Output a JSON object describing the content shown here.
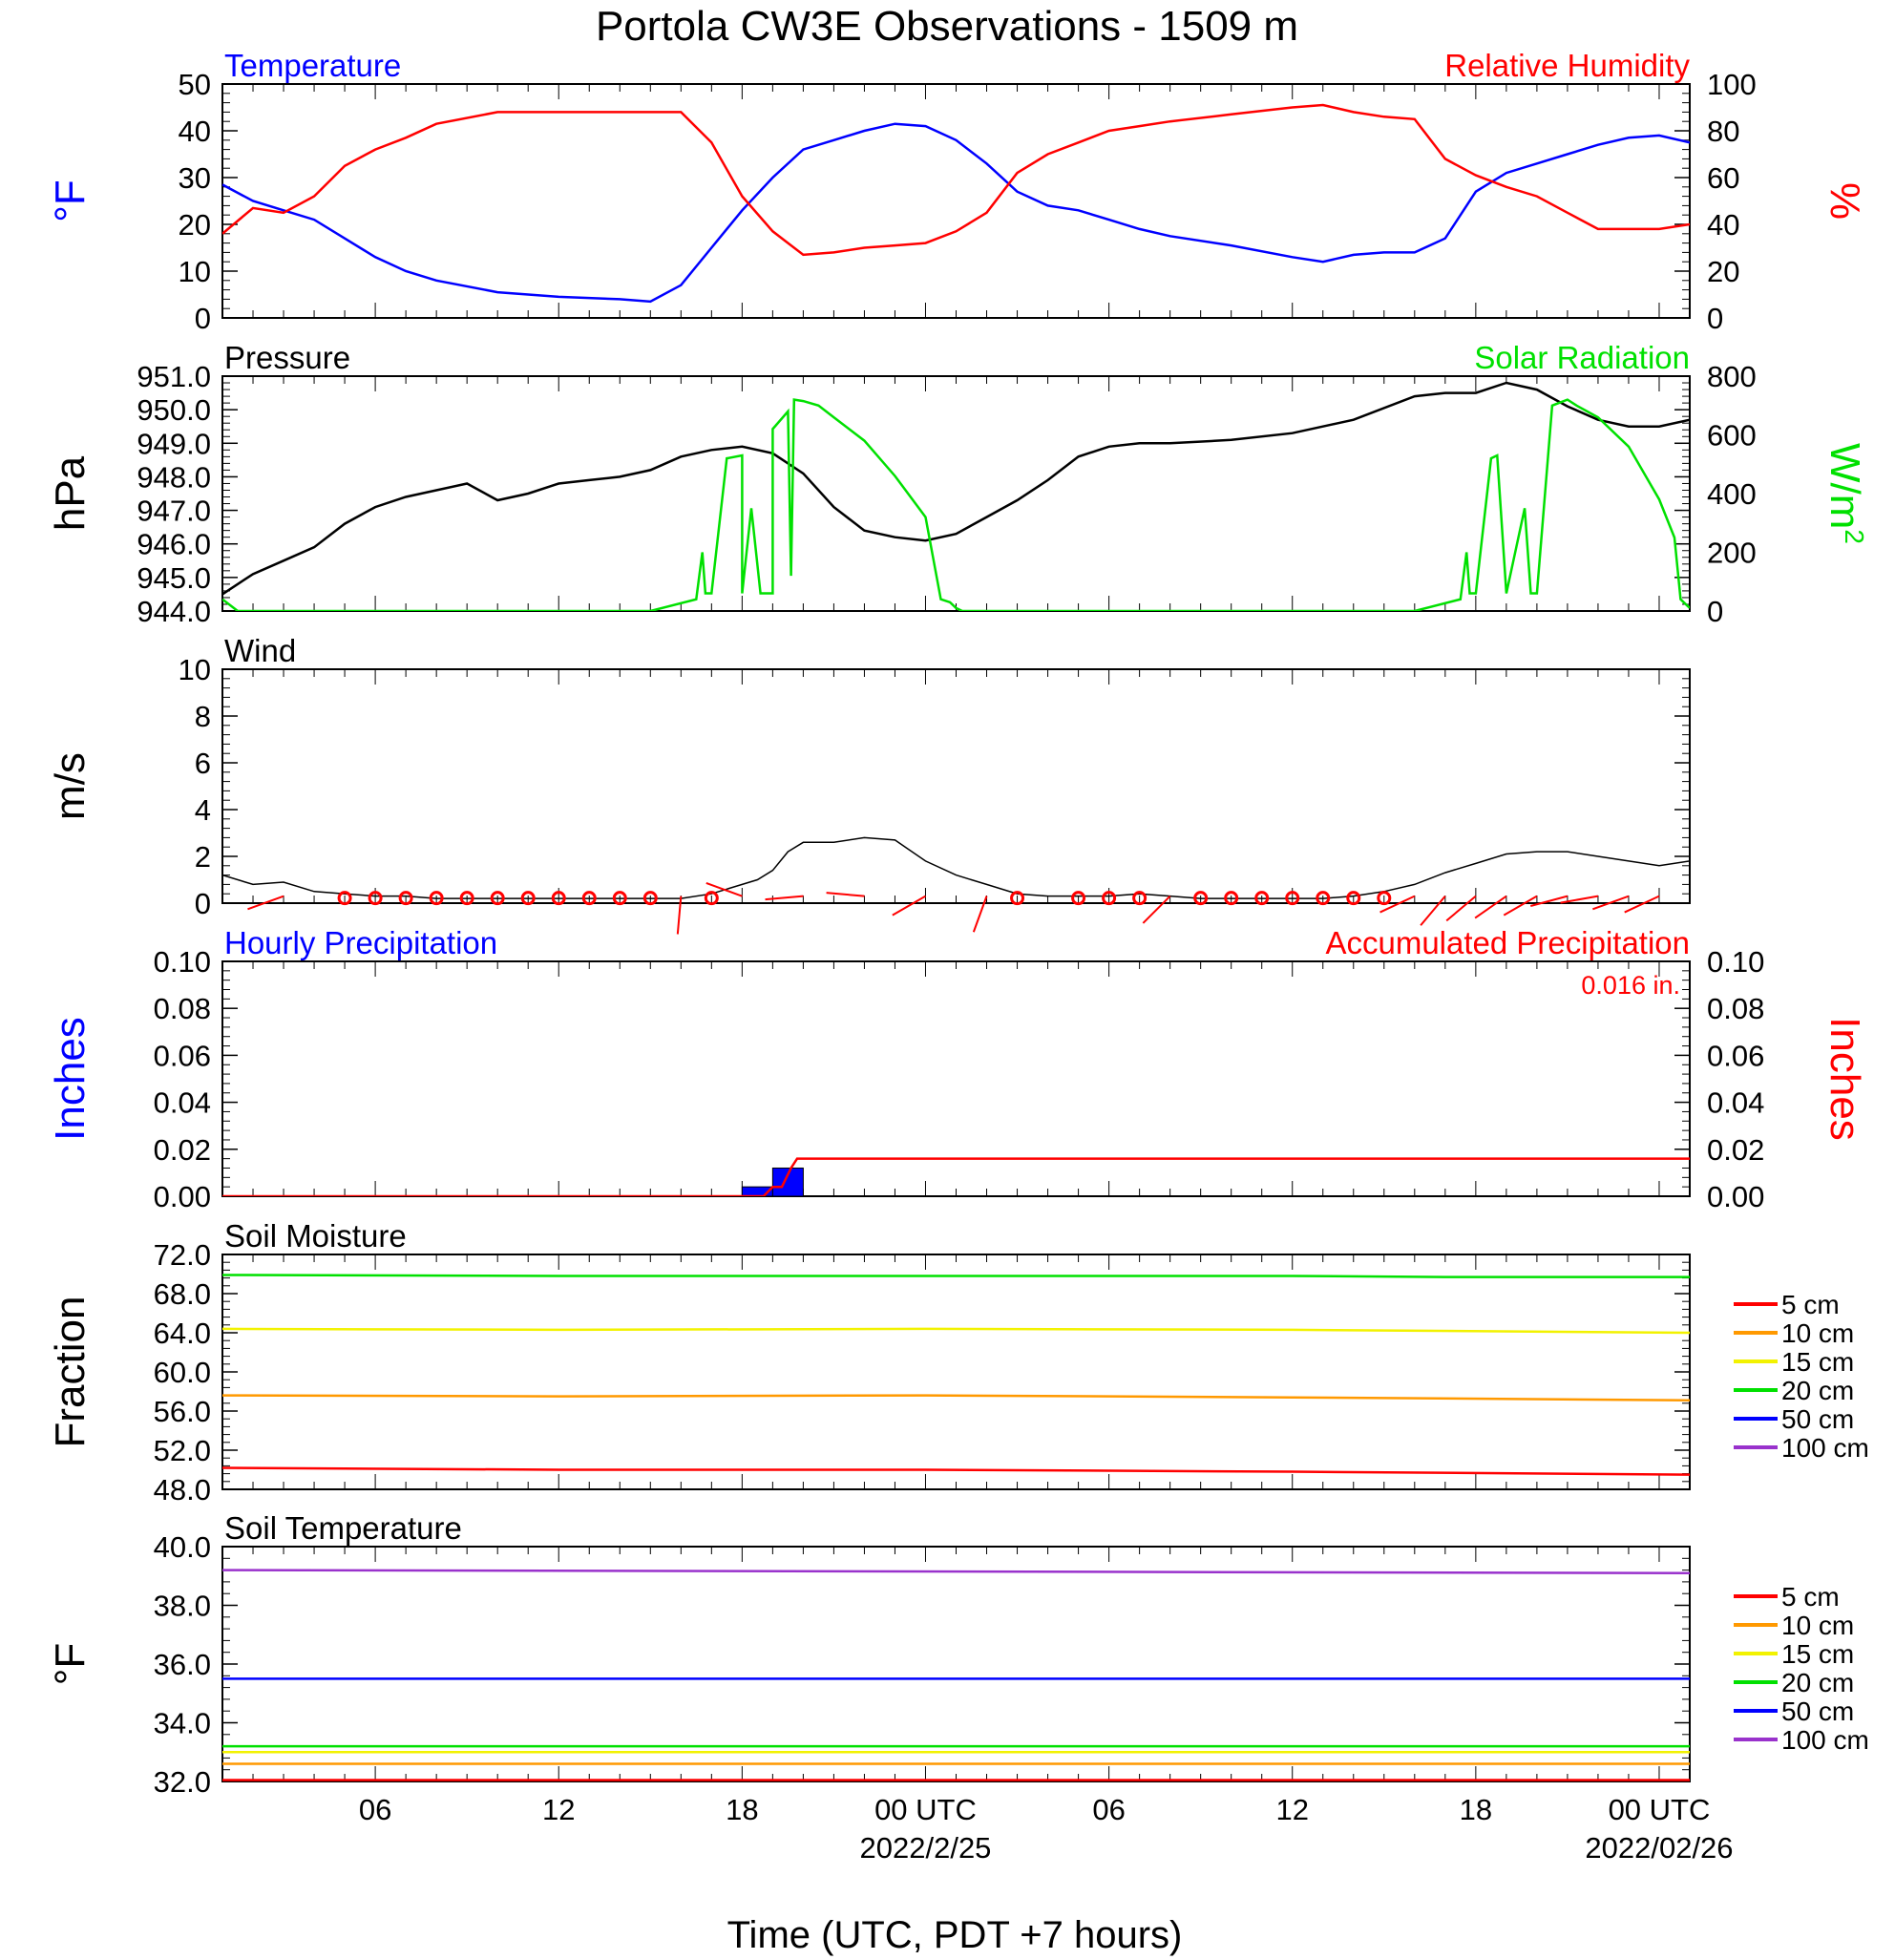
{
  "title": "Portola CW3E Observations - 1509 m",
  "x_axis": {
    "label": "Time (UTC, PDT +7 hours)",
    "ticks": [
      {
        "h": 6,
        "label": "06",
        "date": ""
      },
      {
        "h": 12,
        "label": "12",
        "date": ""
      },
      {
        "h": 18,
        "label": "18",
        "date": ""
      },
      {
        "h": 24,
        "label": "00 UTC",
        "date": "2022/2/25"
      },
      {
        "h": 30,
        "label": "06",
        "date": ""
      },
      {
        "h": 36,
        "label": "12",
        "date": ""
      },
      {
        "h": 42,
        "label": "18",
        "date": ""
      },
      {
        "h": 48,
        "label": "00 UTC",
        "date": "2022/02/26"
      }
    ],
    "range_hours": [
      1,
      49
    ]
  },
  "colors": {
    "temperature": "#0000ff",
    "humidity": "#ff0000",
    "pressure": "#000000",
    "solar": "#00e000",
    "wind": "#000000",
    "barb": "#ff0000",
    "hourly_precip": "#0000ff",
    "accum_precip": "#ff0000"
  },
  "chart_data": [
    {
      "type": "line",
      "name": "temp_rh",
      "left_title": "Temperature",
      "right_title": "Relative Humidity",
      "left_unit": "°F",
      "right_unit": "%",
      "left_ylim": [
        0,
        50
      ],
      "left_ticks": [
        "0",
        "10",
        "20",
        "30",
        "40",
        "50"
      ],
      "right_ylim": [
        0,
        100
      ],
      "right_ticks": [
        "0",
        "20",
        "40",
        "60",
        "80",
        "100"
      ],
      "series": [
        {
          "name": "Temperature",
          "axis": "left",
          "x": [
            1,
            2,
            3,
            4,
            5,
            6,
            7,
            8,
            10,
            12,
            14,
            15,
            16,
            17,
            18,
            19,
            20,
            21,
            22,
            23,
            24,
            25,
            26,
            27,
            28,
            29,
            30,
            31,
            32,
            34,
            36,
            37,
            38,
            39,
            40,
            41,
            42,
            43,
            44,
            45,
            46,
            47,
            48,
            49
          ],
          "y": [
            28.5,
            25,
            23,
            21,
            17,
            13,
            10,
            8,
            5.5,
            4.5,
            4,
            3.5,
            7,
            15,
            23,
            30,
            36,
            38,
            40,
            41.5,
            41,
            38,
            33,
            27,
            24,
            23,
            21,
            19,
            17.5,
            15.5,
            13,
            12,
            13.5,
            14,
            14,
            17,
            27,
            31,
            33,
            35,
            37,
            38.5,
            39,
            37.5
          ]
        },
        {
          "name": "Relative Humidity",
          "axis": "right",
          "x": [
            1,
            2,
            3,
            4,
            5,
            6,
            7,
            8,
            10,
            12,
            14,
            15,
            16,
            17,
            18,
            19,
            20,
            21,
            22,
            23,
            24,
            25,
            26,
            27,
            28,
            29,
            30,
            31,
            32,
            34,
            36,
            37,
            38,
            39,
            40,
            41,
            42,
            43,
            44,
            45,
            46,
            47,
            48,
            49
          ],
          "y": [
            36,
            47,
            45,
            52,
            65,
            72,
            77,
            83,
            88,
            88,
            88,
            88,
            88,
            75,
            52,
            37,
            27,
            28,
            30,
            31,
            32,
            37,
            45,
            62,
            70,
            75,
            80,
            82,
            84,
            87,
            90,
            91,
            88,
            86,
            85,
            68,
            61,
            56,
            52,
            45,
            38,
            38,
            38,
            40
          ]
        }
      ]
    },
    {
      "type": "line",
      "name": "pressure_solar",
      "left_title": "Pressure",
      "right_title": "Solar Radiation",
      "left_unit": "hPa",
      "right_unit": "W/m",
      "right_unit_sup": "2",
      "left_ylim": [
        944,
        951
      ],
      "left_ticks": [
        "944.0",
        "945.0",
        "946.0",
        "947.0",
        "948.0",
        "949.0",
        "950.0",
        "951.0"
      ],
      "right_ylim": [
        0,
        800
      ],
      "right_ticks": [
        "0",
        "200",
        "400",
        "600",
        "800"
      ],
      "series": [
        {
          "name": "Pressure",
          "axis": "left",
          "x": [
            1,
            2,
            3,
            4,
            5,
            6,
            7,
            8,
            9,
            10,
            11,
            12,
            13,
            14,
            15,
            16,
            17,
            18,
            19,
            20,
            21,
            22,
            23,
            24,
            25,
            26,
            27,
            28,
            29,
            30,
            31,
            32,
            34,
            36,
            38,
            40,
            41,
            42,
            43,
            44,
            45,
            46,
            47,
            48,
            49
          ],
          "y": [
            944.5,
            945.1,
            945.5,
            945.9,
            946.6,
            947.1,
            947.4,
            947.6,
            947.8,
            947.3,
            947.5,
            947.8,
            947.9,
            948.0,
            948.2,
            948.6,
            948.8,
            948.9,
            948.7,
            948.1,
            947.1,
            946.4,
            946.2,
            946.1,
            946.3,
            946.8,
            947.3,
            947.9,
            948.6,
            948.9,
            949.0,
            949.0,
            949.1,
            949.3,
            949.7,
            950.4,
            950.5,
            950.5,
            950.8,
            950.6,
            950.1,
            949.7,
            949.5,
            949.5,
            949.7
          ]
        },
        {
          "name": "Solar Radiation",
          "axis": "right",
          "x": [
            1,
            1.5,
            2,
            15,
            16.5,
            16.7,
            16.8,
            17,
            17.5,
            18,
            18,
            18.3,
            18.6,
            19,
            19,
            19.5,
            19.6,
            19.7,
            20,
            20.5,
            21,
            22,
            23,
            24,
            24.5,
            24.8,
            25,
            25.2,
            25.6,
            40,
            41.5,
            41.7,
            41.8,
            42,
            42.5,
            42.7,
            43,
            43.6,
            43.8,
            44,
            44.5,
            45,
            45.3,
            46,
            47,
            48,
            48.5,
            48.7,
            48.8,
            49
          ],
          "y": [
            40,
            0,
            0,
            0,
            40,
            200,
            60,
            60,
            520,
            530,
            60,
            350,
            60,
            60,
            620,
            680,
            120,
            720,
            715,
            700,
            660,
            580,
            460,
            320,
            40,
            30,
            10,
            0,
            0,
            0,
            40,
            200,
            60,
            60,
            520,
            530,
            60,
            350,
            60,
            60,
            700,
            720,
            700,
            660,
            560,
            380,
            250,
            40,
            30,
            10
          ]
        }
      ]
    },
    {
      "type": "line",
      "name": "wind",
      "left_title": "Wind",
      "left_unit": "m/s",
      "left_ylim": [
        0,
        10
      ],
      "left_ticks": [
        "0",
        "2",
        "4",
        "6",
        "8",
        "10"
      ],
      "series": [
        {
          "name": "Wind",
          "axis": "left",
          "x": [
            1,
            2,
            3,
            4,
            5,
            6,
            7,
            8,
            9,
            10,
            11,
            12,
            13,
            14,
            15,
            16,
            17,
            17.5,
            18,
            18.5,
            19,
            19.5,
            20,
            21,
            22,
            23,
            24,
            25,
            26,
            27,
            28,
            29,
            30,
            31,
            32,
            33,
            34,
            35,
            36,
            37,
            38,
            39,
            40,
            41,
            42,
            43,
            44,
            45,
            46,
            47,
            48,
            49
          ],
          "y": [
            1.2,
            0.8,
            0.9,
            0.5,
            0.4,
            0.3,
            0.3,
            0.2,
            0.2,
            0.2,
            0.2,
            0.2,
            0.2,
            0.2,
            0.2,
            0.2,
            0.4,
            0.6,
            0.8,
            1.0,
            1.4,
            2.2,
            2.6,
            2.6,
            2.8,
            2.7,
            1.8,
            1.2,
            0.8,
            0.4,
            0.3,
            0.3,
            0.3,
            0.4,
            0.3,
            0.2,
            0.2,
            0.2,
            0.2,
            0.2,
            0.3,
            0.5,
            0.8,
            1.3,
            1.7,
            2.1,
            2.2,
            2.2,
            2.0,
            1.8,
            1.6,
            1.8
          ]
        }
      ],
      "barbs": [
        {
          "h": 3,
          "calm": false,
          "deg": 250
        },
        {
          "h": 5,
          "calm": true
        },
        {
          "h": 6,
          "calm": true
        },
        {
          "h": 7,
          "calm": true
        },
        {
          "h": 8,
          "calm": true
        },
        {
          "h": 9,
          "calm": true
        },
        {
          "h": 10,
          "calm": true
        },
        {
          "h": 11,
          "calm": true
        },
        {
          "h": 12,
          "calm": true
        },
        {
          "h": 13,
          "calm": true
        },
        {
          "h": 14,
          "calm": true
        },
        {
          "h": 15,
          "calm": true
        },
        {
          "h": 16,
          "calm": false,
          "deg": 185
        },
        {
          "h": 17,
          "calm": true
        },
        {
          "h": 18,
          "calm": false,
          "deg": 290
        },
        {
          "h": 20,
          "calm": false,
          "deg": 265
        },
        {
          "h": 22,
          "calm": false,
          "deg": 275
        },
        {
          "h": 24,
          "calm": false,
          "deg": 240
        },
        {
          "h": 26,
          "calm": false,
          "deg": 200
        },
        {
          "h": 27,
          "calm": true
        },
        {
          "h": 29,
          "calm": true
        },
        {
          "h": 30,
          "calm": true
        },
        {
          "h": 31,
          "calm": true
        },
        {
          "h": 32,
          "calm": false,
          "deg": 225
        },
        {
          "h": 33,
          "calm": true
        },
        {
          "h": 34,
          "calm": true
        },
        {
          "h": 35,
          "calm": true
        },
        {
          "h": 36,
          "calm": true
        },
        {
          "h": 37,
          "calm": true
        },
        {
          "h": 38,
          "calm": true
        },
        {
          "h": 39,
          "calm": true
        },
        {
          "h": 40,
          "calm": false,
          "deg": 245
        },
        {
          "h": 41,
          "calm": false,
          "deg": 220
        },
        {
          "h": 42,
          "calm": false,
          "deg": 230
        },
        {
          "h": 43,
          "calm": false,
          "deg": 235
        },
        {
          "h": 44,
          "calm": false,
          "deg": 240
        },
        {
          "h": 45,
          "calm": false,
          "deg": 255
        },
        {
          "h": 46,
          "calm": false,
          "deg": 260
        },
        {
          "h": 47,
          "calm": false,
          "deg": 250
        },
        {
          "h": 48,
          "calm": false,
          "deg": 245
        }
      ]
    },
    {
      "type": "bar",
      "name": "precip",
      "left_title": "Hourly Precipitation",
      "right_title": "Accumulated Precipitation",
      "total_label": "0.016 in.",
      "left_unit": "Inches",
      "right_unit": "Inches",
      "left_ylim": [
        0,
        0.1
      ],
      "left_ticks": [
        "0.00",
        "0.02",
        "0.04",
        "0.06",
        "0.08",
        "0.10"
      ],
      "right_ylim": [
        0,
        0.1
      ],
      "right_ticks": [
        "0.00",
        "0.02",
        "0.04",
        "0.06",
        "0.08",
        "0.10"
      ],
      "bars": [
        {
          "h": 18,
          "value": 0.004
        },
        {
          "h": 19,
          "value": 0.012
        }
      ],
      "series": [
        {
          "name": "Accumulated Precipitation",
          "axis": "right",
          "x": [
            1,
            18.7,
            19,
            19.3,
            19.6,
            19.8,
            49
          ],
          "y": [
            0,
            0,
            0.004,
            0.004,
            0.012,
            0.016,
            0.016
          ]
        }
      ]
    },
    {
      "type": "line",
      "name": "soil_moisture",
      "left_title": "Soil Moisture",
      "left_unit": "Fraction",
      "left_ylim": [
        48,
        72
      ],
      "left_ticks": [
        "48.0",
        "52.0",
        "56.0",
        "60.0",
        "64.0",
        "68.0",
        "72.0"
      ],
      "legend": [
        "5 cm",
        "10 cm",
        "15 cm",
        "20 cm",
        "50 cm",
        "100 cm"
      ],
      "series": [
        {
          "name": "5 cm",
          "color": "#ff0000",
          "x": [
            1,
            12,
            24,
            36,
            49
          ],
          "y": [
            50.2,
            50.0,
            50.0,
            49.8,
            49.5
          ]
        },
        {
          "name": "10 cm",
          "color": "#ff9900",
          "x": [
            1,
            12,
            24,
            36,
            49
          ],
          "y": [
            57.6,
            57.5,
            57.6,
            57.4,
            57.1
          ]
        },
        {
          "name": "15 cm",
          "color": "#f2f200",
          "x": [
            1,
            12,
            24,
            36,
            49
          ],
          "y": [
            64.4,
            64.3,
            64.4,
            64.3,
            64.0
          ]
        },
        {
          "name": "20 cm",
          "color": "#00e000",
          "x": [
            1,
            12,
            24,
            36,
            41,
            49
          ],
          "y": [
            69.9,
            69.8,
            69.8,
            69.8,
            69.7,
            69.7
          ]
        }
      ]
    },
    {
      "type": "line",
      "name": "soil_temperature",
      "left_title": "Soil Temperature",
      "left_unit": "°F",
      "left_ylim": [
        32,
        40
      ],
      "left_ticks": [
        "32.0",
        "34.0",
        "36.0",
        "38.0",
        "40.0"
      ],
      "legend": [
        "5 cm",
        "10 cm",
        "15 cm",
        "20 cm",
        "50 cm",
        "100 cm"
      ],
      "series": [
        {
          "name": "5 cm",
          "color": "#ff0000",
          "x": [
            1,
            49
          ],
          "y": [
            32.05,
            32.05
          ]
        },
        {
          "name": "10 cm",
          "color": "#ff9900",
          "x": [
            1,
            49
          ],
          "y": [
            32.6,
            32.6
          ]
        },
        {
          "name": "15 cm",
          "color": "#f2f200",
          "x": [
            1,
            49
          ],
          "y": [
            33.0,
            33.0
          ]
        },
        {
          "name": "20 cm",
          "color": "#00e000",
          "x": [
            1,
            49
          ],
          "y": [
            33.2,
            33.2
          ]
        },
        {
          "name": "50 cm",
          "color": "#0000ff",
          "x": [
            1,
            49
          ],
          "y": [
            35.5,
            35.5
          ]
        },
        {
          "name": "100 cm",
          "color": "#9932cc",
          "x": [
            1,
            49
          ],
          "y": [
            39.2,
            39.1
          ]
        }
      ]
    }
  ],
  "legend_colors": [
    "#ff0000",
    "#ff9900",
    "#f2f200",
    "#00e000",
    "#0000ff",
    "#9932cc"
  ]
}
